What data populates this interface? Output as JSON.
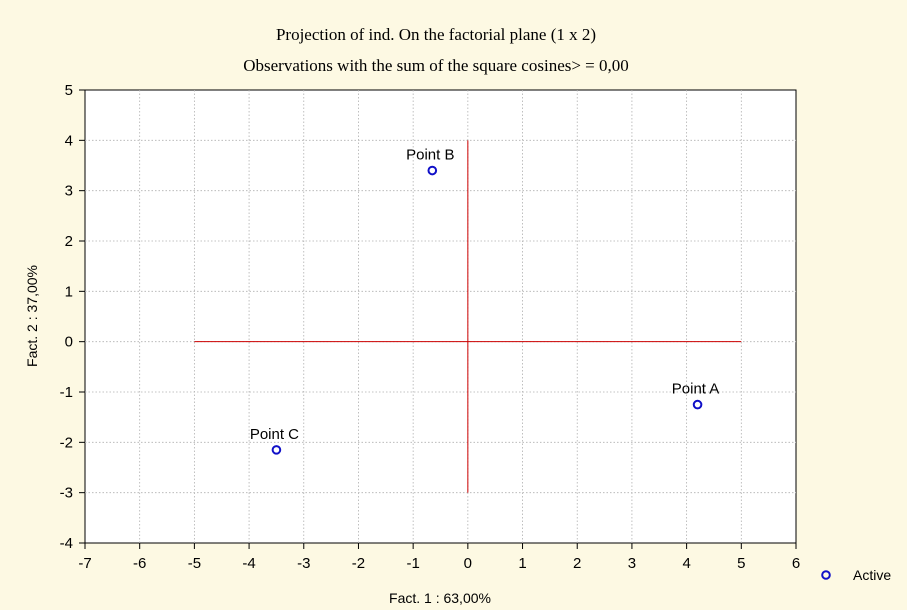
{
  "chart_data": {
    "type": "scatter",
    "title": "Projection of ind. On the factorial plane (1 x 2)",
    "subtitle": "Observations with the sum of the square cosines> = 0,00",
    "xlabel": "Fact. 1 : 63,00%",
    "ylabel": "Fact. 2 : 37,00%",
    "xlim": [
      -7,
      6
    ],
    "ylim": [
      -4,
      5
    ],
    "x_ticks": [
      -7,
      -6,
      -5,
      -4,
      -3,
      -2,
      -1,
      0,
      1,
      2,
      3,
      4,
      5,
      6
    ],
    "y_ticks": [
      -4,
      -3,
      -2,
      -1,
      0,
      1,
      2,
      3,
      4,
      5
    ],
    "grid": true,
    "legend_position": "bottom-right",
    "series": [
      {
        "name": "Active",
        "color": "#1010c8",
        "points": [
          {
            "label": "Point A",
            "x": 4.2,
            "y": -1.25
          },
          {
            "label": "Point B",
            "x": -0.65,
            "y": 3.4
          },
          {
            "label": "Point C",
            "x": -3.5,
            "y": -2.15
          }
        ]
      }
    ],
    "reference_lines": {
      "color": "#cc0000",
      "horizontal": {
        "y": 0,
        "x_from": -5,
        "x_to": 5
      },
      "vertical": {
        "x": 0,
        "y_from": -3,
        "y_to": 4
      }
    }
  },
  "colors": {
    "background": "#fdf9e3",
    "plot_background": "#ffffff",
    "grid": "#b0b0b0"
  }
}
